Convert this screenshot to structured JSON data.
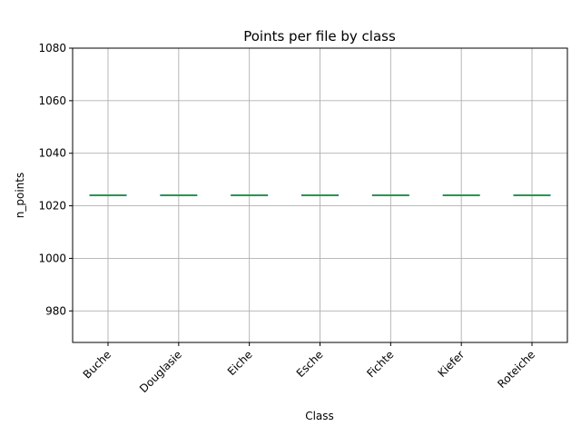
{
  "chart_data": {
    "type": "box",
    "title": "Points per file by class",
    "xlabel": "Class",
    "ylabel": "n_points",
    "categories": [
      "Buche",
      "Douglasie",
      "Eiche",
      "Esche",
      "Fichte",
      "Kiefer",
      "Roteiche"
    ],
    "values": [
      1024,
      1024,
      1024,
      1024,
      1024,
      1024,
      1024
    ],
    "ylim": [
      968,
      1080
    ],
    "yticks": [
      980,
      1000,
      1020,
      1040,
      1060,
      1080
    ],
    "grid": true,
    "colors": {
      "median": "#2ca02c",
      "box": "#1f77b4",
      "grid": "#b0b0b0"
    }
  }
}
